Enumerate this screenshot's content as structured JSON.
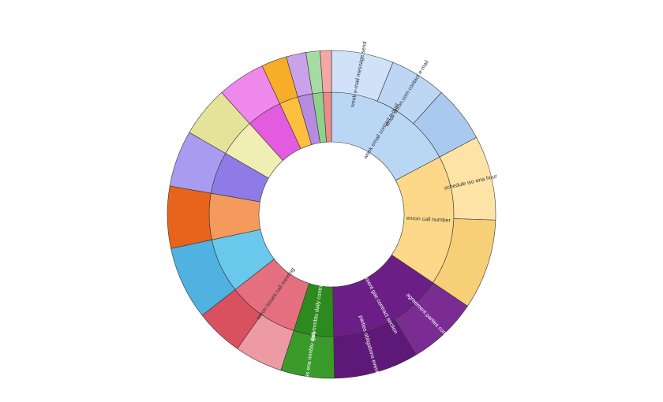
{
  "chart_data": {
    "type": "sunburst",
    "nodes": [
      {
        "label": "week email contact e-mail",
        "value": 62,
        "color": "#b9d7f5",
        "children": [
          {
            "label": "week e-mail message send",
            "value": 22,
            "color": "#cfe2f8"
          },
          {
            "label": "email enron.com contact e-mail",
            "value": 20,
            "color": "#bcd6f3"
          },
          {
            "label": null,
            "value": 20,
            "color": "#a9c9ef"
          }
        ]
      },
      {
        "label": "enron call number",
        "value": 62,
        "color": "#fcd888",
        "children": [
          {
            "label": "schedule iso ena hour",
            "value": 30,
            "color": "#fde3a5"
          },
          {
            "label": null,
            "value": 32,
            "color": "#f7cf77"
          }
        ]
      },
      {
        "label": "agreement gas contract section",
        "value": 55,
        "color": "#6b1f86",
        "children": [
          {
            "label": "agreement parties contract",
            "value": 25,
            "color": "#7a2c93"
          },
          {
            "label": "parties obligations event agent",
            "value": 30,
            "color": "#5e1877"
          }
        ]
      },
      {
        "label": "gas mmbtu daily contract",
        "value": 19,
        "color": "#2c8a1e",
        "children": [
          {
            "label": "gas ena mmbtu daily",
            "value": 19,
            "color": "#3a9a2a"
          }
        ]
      },
      {
        "label": "enron issues call meeting",
        "value": 34,
        "color": "#e4707f",
        "children": [
          {
            "label": null,
            "value": 17,
            "color": "#ee9aa5"
          },
          {
            "label": null,
            "value": 17,
            "color": "#d9505f"
          }
        ]
      },
      {
        "label": null,
        "value": 26,
        "color": "#69c8ec",
        "children": [
          {
            "label": null,
            "value": 26,
            "color": "#4fb2e0"
          }
        ]
      },
      {
        "label": null,
        "value": 22,
        "color": "#f39a5c",
        "children": [
          {
            "label": null,
            "value": 22,
            "color": "#e8641c"
          }
        ]
      },
      {
        "label": null,
        "value": 20,
        "color": "#8f7be6",
        "children": [
          {
            "label": null,
            "value": 20,
            "color": "#a99cf0"
          }
        ]
      },
      {
        "label": null,
        "value": 18,
        "color": "#f0eeb2",
        "children": [
          {
            "label": null,
            "value": 18,
            "color": "#e5e39a"
          }
        ]
      },
      {
        "label": null,
        "value": 17,
        "color": "#e35ce0",
        "children": [
          {
            "label": null,
            "value": 17,
            "color": "#ee88ec"
          }
        ]
      },
      {
        "label": null,
        "value": 9,
        "color": "#fdbf3e",
        "children": [
          {
            "label": null,
            "value": 9,
            "color": "#f7ad2a"
          }
        ]
      },
      {
        "label": null,
        "value": 7,
        "color": "#b68be0",
        "children": [
          {
            "label": null,
            "value": 7,
            "color": "#c9a2ea"
          }
        ]
      },
      {
        "label": null,
        "value": 5,
        "color": "#8ed08c",
        "children": [
          {
            "label": null,
            "value": 5,
            "color": "#a6dca4"
          }
        ]
      },
      {
        "label": null,
        "value": 4,
        "color": "#ef8a8a",
        "children": [
          {
            "label": null,
            "value": 4,
            "color": "#f5a6a6"
          }
        ]
      }
    ]
  }
}
